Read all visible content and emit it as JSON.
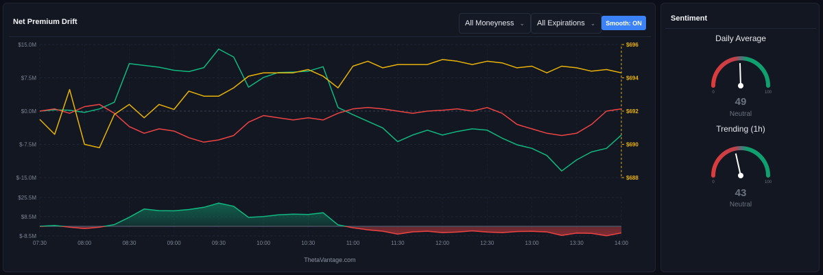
{
  "header": {
    "title": "Net Premium Drift",
    "moneyness": "All Moneyness",
    "expirations": "All Expirations",
    "smooth_label": "Smooth: ON"
  },
  "watermark": "ThetaVantage.com",
  "colors": {
    "call": "#10b981",
    "put": "#ef4444",
    "price": "#eab308",
    "accent": "#3b82f6"
  },
  "icons": {
    "dropdown": "chevron-down-icon"
  },
  "chart_data": [
    {
      "type": "line",
      "left_axis": {
        "ticks": [
          "$15.0M",
          "$7.5M",
          "$0.0M",
          "$-7.5M",
          "$-15.0M"
        ],
        "range": [
          -15,
          15
        ]
      },
      "right_axis": {
        "ticks": [
          "$696",
          "$694",
          "$692",
          "$690",
          "$688"
        ],
        "range": [
          688,
          696
        ]
      },
      "grid": true,
      "x": [
        "07:30",
        "07:40",
        "07:50",
        "08:00",
        "08:10",
        "08:20",
        "08:30",
        "08:40",
        "08:50",
        "09:00",
        "09:10",
        "09:20",
        "09:30",
        "09:40",
        "09:50",
        "10:00",
        "10:10",
        "10:20",
        "10:30",
        "10:40",
        "10:50",
        "11:00",
        "11:10",
        "11:20",
        "11:30",
        "11:40",
        "11:50",
        "12:00",
        "12:10",
        "12:20",
        "12:30",
        "12:40",
        "12:50",
        "13:00",
        "13:10",
        "13:20",
        "13:30",
        "13:40",
        "13:50",
        "14:00"
      ],
      "series": [
        {
          "color": "#10b981",
          "axis": "left",
          "values": [
            0,
            0.3,
            0.2,
            -0.3,
            0.5,
            2,
            10.7,
            10.3,
            9.9,
            9.2,
            8.9,
            9.8,
            14,
            12.2,
            5.4,
            7.6,
            8.7,
            8.8,
            9,
            10,
            0.8,
            -0.8,
            -2.3,
            -3.8,
            -6.9,
            -5.4,
            -4.3,
            -5.4,
            -4.6,
            -4,
            -4.3,
            -6.1,
            -7.6,
            -8.4,
            -10,
            -13.5,
            -11,
            -9.2,
            -8.4,
            -5.4
          ]
        },
        {
          "color": "#ef4444",
          "axis": "left",
          "values": [
            0,
            0.5,
            -0.5,
            1,
            1.5,
            -0.5,
            -3.5,
            -5,
            -4,
            -4.5,
            -6,
            -7,
            -6.5,
            -5.5,
            -2.5,
            -1,
            -1.5,
            -2,
            -1.5,
            -2,
            -0.5,
            0.5,
            0.8,
            0.5,
            0,
            -0.5,
            0,
            0.2,
            0.5,
            0,
            0.8,
            -0.5,
            -3,
            -4,
            -5,
            -5.5,
            -5,
            -3,
            0,
            0.5
          ]
        },
        {
          "color": "#eab308",
          "axis": "right",
          "values": [
            691.5,
            690.6,
            693.3,
            690,
            689.8,
            691.8,
            692.4,
            691.6,
            692.4,
            692.1,
            693.2,
            692.9,
            692.9,
            693.4,
            694.1,
            694.3,
            694.3,
            694.3,
            694.5,
            694.1,
            693.4,
            694.7,
            695,
            694.6,
            694.8,
            694.8,
            694.8,
            695.1,
            695,
            694.8,
            695,
            694.9,
            694.6,
            694.7,
            694.3,
            694.7,
            694.6,
            694.4,
            694.5,
            694.3
          ]
        }
      ]
    },
    {
      "type": "area",
      "y_axis": {
        "ticks": [
          "$25.5M",
          "$8.5M",
          "$-8.5M"
        ],
        "range": [
          -8.5,
          25.5
        ]
      },
      "x_ticks": [
        "07:30",
        "08:00",
        "08:30",
        "09:00",
        "09:30",
        "10:00",
        "10:30",
        "11:00",
        "11:30",
        "12:00",
        "12:30",
        "13:00",
        "13:30",
        "14:00"
      ],
      "positive_color": "#10b981",
      "negative_color": "#ef4444",
      "values": [
        0,
        0.8,
        -0.7,
        -2,
        -0.8,
        1.5,
        8,
        15.3,
        13.9,
        13.7,
        14.9,
        16.8,
        20.5,
        17.7,
        7.9,
        8.6,
        10.2,
        10.8,
        10.5,
        12,
        1.3,
        -1.3,
        -3.1,
        -4.3,
        -6.9,
        -4.9,
        -4.3,
        -5.6,
        -5.1,
        -4,
        -5.1,
        -5.6,
        -4.6,
        -4.4,
        -5,
        -8,
        -6,
        -6.2,
        -8.4,
        -5.9
      ]
    }
  ],
  "sentiment": {
    "title": "Sentiment",
    "gauges": [
      {
        "title": "Daily Average",
        "value": 49,
        "label": "Neutral",
        "min": "0",
        "max": "100"
      },
      {
        "title": "Trending (1h)",
        "value": 43,
        "label": "Neutral",
        "min": "0",
        "max": "100"
      }
    ]
  }
}
